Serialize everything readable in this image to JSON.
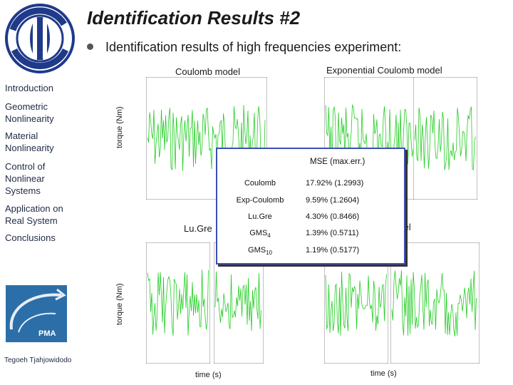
{
  "slide": {
    "title": "Identification Results #2",
    "subtitle": "Identification results of high frequencies experiment:"
  },
  "logo": {
    "top_text": "Mechanical Engineering",
    "bottom_text": "Department Werktuigkunde",
    "icon": "gear-circle-logo"
  },
  "sidebar": {
    "items": [
      {
        "label": "Introduction"
      },
      {
        "label": "Geometric\nNonlinearity"
      },
      {
        "label": "Material\nNonlinearity"
      },
      {
        "label": "Control of\nNonlinear\nSystems"
      },
      {
        "label": "Application on\nReal System"
      },
      {
        "label": "Conclusions"
      }
    ],
    "badge": "PMA",
    "author": "Tegoeh Tjahjowidodo"
  },
  "plots": {
    "top_left_label": "Coulomb model",
    "top_right_label": "Exponential Coulomb model",
    "bottom_left_label": "Lu.Gre",
    "bottom_right_label": "odel",
    "ylabel_top": "torque (Nm)",
    "ylabel_bottom": "torque (Nm)",
    "xlabel_left": "time (s)",
    "xlabel_right": "time (s)",
    "colors": {
      "measured": "#000000",
      "model": "#22cc22"
    }
  },
  "mse_table": {
    "header": "MSE (max.err.)",
    "rows": [
      {
        "model": "Coulomb",
        "model_sub": "",
        "value": "17.92% (1.2993)"
      },
      {
        "model": "Exp-Coulomb",
        "model_sub": "",
        "value": "9.59% (1.2604)"
      },
      {
        "model": "Lu.Gre",
        "model_sub": "",
        "value": "4.30% (0.8466)"
      },
      {
        "model": "GMS",
        "model_sub": "4",
        "value": "1.39% (0.5711)"
      },
      {
        "model": "GMS",
        "model_sub": "10",
        "value": "1.19% (0.5177)"
      }
    ]
  }
}
